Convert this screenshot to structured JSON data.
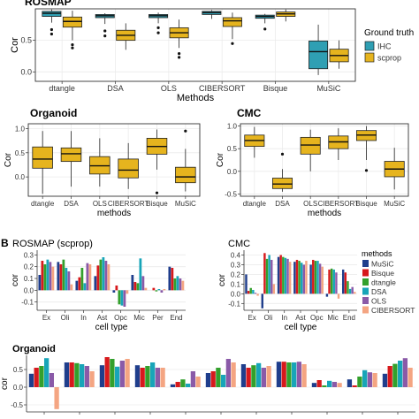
{
  "panel_b_label": "B",
  "colors": {
    "ihc": "#2f9fb3",
    "scprop": "#e6b41e",
    "MuSiC": "#1f3e8c",
    "Bisque": "#d7191c",
    "dtangle": "#33a02c",
    "DSA": "#18a5b8",
    "OLS": "#8a5aa8",
    "CIBERSORT": "#f4a582",
    "grid": "#ebebeb",
    "panel_border": "#333333"
  },
  "chart_data": [
    {
      "type": "box",
      "title": "ROSMAP",
      "xlabel": "Methods",
      "ylabel": "Cor",
      "categories": [
        "dtangle",
        "DSA",
        "OLS",
        "CIBERSORT",
        "Bisque",
        "MuSiC"
      ],
      "ylim": [
        -0.15,
        1.0
      ],
      "yticks": [
        0.0,
        0.5
      ],
      "legend": {
        "title": "Ground truth",
        "position": "right",
        "items": [
          "IHC",
          "scprop"
        ]
      },
      "series": [
        {
          "name": "IHC",
          "boxes": [
            {
              "min": 0.78,
              "q1": 0.88,
              "median": 0.93,
              "q3": 0.96,
              "max": 0.99,
              "outliers": [
                0.6,
                0.67
              ]
            },
            {
              "min": 0.76,
              "q1": 0.86,
              "median": 0.89,
              "q3": 0.91,
              "max": 0.93,
              "outliers": [
                0.57,
                0.65
              ]
            },
            {
              "min": 0.77,
              "q1": 0.86,
              "median": 0.89,
              "q3": 0.91,
              "max": 0.94,
              "outliers": [
                0.62,
                0.7
              ]
            },
            {
              "min": 0.84,
              "q1": 0.91,
              "median": 0.94,
              "q3": 0.96,
              "max": 0.98,
              "outliers": []
            },
            {
              "min": 0.77,
              "q1": 0.85,
              "median": 0.88,
              "q3": 0.9,
              "max": 0.92,
              "outliers": [
                0.68
              ]
            },
            {
              "min": -0.05,
              "q1": 0.05,
              "median": 0.32,
              "q3": 0.49,
              "max": 0.75,
              "outliers": []
            }
          ]
        },
        {
          "name": "scprop",
          "boxes": [
            {
              "min": 0.5,
              "q1": 0.71,
              "median": 0.8,
              "q3": 0.87,
              "max": 0.97,
              "outliers": [
                0.38,
                0.43
              ]
            },
            {
              "min": 0.35,
              "q1": 0.5,
              "median": 0.58,
              "q3": 0.66,
              "max": 0.77,
              "outliers": []
            },
            {
              "min": 0.38,
              "q1": 0.54,
              "median": 0.62,
              "q3": 0.7,
              "max": 0.83,
              "outliers": [
                0.23,
                0.29
              ]
            },
            {
              "min": 0.52,
              "q1": 0.72,
              "median": 0.81,
              "q3": 0.86,
              "max": 0.94,
              "outliers": [
                0.45
              ]
            },
            {
              "min": 0.8,
              "q1": 0.88,
              "median": 0.92,
              "q3": 0.95,
              "max": 0.99,
              "outliers": []
            },
            {
              "min": 0.05,
              "q1": 0.16,
              "median": 0.26,
              "q3": 0.36,
              "max": 0.5,
              "outliers": []
            }
          ]
        }
      ]
    },
    {
      "type": "box",
      "title": "Organoid",
      "xlabel": "methods",
      "ylabel": "Cor",
      "categories": [
        "dtangle",
        "DSA",
        "OLS",
        "CIBERSORT",
        "Bisque",
        "MuSiC"
      ],
      "ylim": [
        -0.4,
        1.1
      ],
      "yticks": [
        0.0,
        0.5,
        1.0
      ],
      "series": [
        {
          "name": "scprop",
          "boxes": [
            {
              "min": -0.35,
              "q1": 0.18,
              "median": 0.37,
              "q3": 0.62,
              "max": 0.95,
              "outliers": []
            },
            {
              "min": -0.2,
              "q1": 0.32,
              "median": 0.48,
              "q3": 0.6,
              "max": 0.95,
              "outliers": []
            },
            {
              "min": -0.2,
              "q1": 0.06,
              "median": 0.23,
              "q3": 0.42,
              "max": 0.8,
              "outliers": []
            },
            {
              "min": -0.25,
              "q1": -0.02,
              "median": 0.14,
              "q3": 0.37,
              "max": 0.7,
              "outliers": []
            },
            {
              "min": 0.15,
              "q1": 0.47,
              "median": 0.63,
              "q3": 0.8,
              "max": 0.98,
              "outliers": [
                -0.33
              ]
            },
            {
              "min": -0.3,
              "q1": -0.12,
              "median": 0.0,
              "q3": 0.2,
              "max": 0.58,
              "outliers": [
                0.95
              ]
            }
          ]
        }
      ]
    },
    {
      "type": "box",
      "title": "CMC",
      "xlabel": "methods",
      "ylabel": "Cor",
      "categories": [
        "dtangle",
        "DSA",
        "OLS",
        "CIBERSORT",
        "Bisque",
        "MuSiC"
      ],
      "ylim": [
        -0.55,
        1.05
      ],
      "yticks": [
        -0.5,
        0.0,
        0.5,
        1.0
      ],
      "series": [
        {
          "name": "scprop",
          "boxes": [
            {
              "min": 0.3,
              "q1": 0.55,
              "median": 0.68,
              "q3": 0.8,
              "max": 0.98,
              "outliers": []
            },
            {
              "min": -0.45,
              "q1": -0.38,
              "median": -0.28,
              "q3": -0.15,
              "max": 0.05,
              "outliers": [
                0.38
              ]
            },
            {
              "min": 0.0,
              "q1": 0.38,
              "median": 0.58,
              "q3": 0.75,
              "max": 0.92,
              "outliers": []
            },
            {
              "min": 0.25,
              "q1": 0.5,
              "median": 0.65,
              "q3": 0.78,
              "max": 0.95,
              "outliers": []
            },
            {
              "min": 0.25,
              "q1": 0.68,
              "median": 0.8,
              "q3": 0.9,
              "max": 1.0,
              "outliers": [
                0.02
              ]
            },
            {
              "min": -0.4,
              "q1": -0.12,
              "median": 0.05,
              "q3": 0.22,
              "max": 0.52,
              "outliers": []
            }
          ]
        }
      ]
    },
    {
      "type": "bar",
      "title": "ROSMAP (scprop)",
      "xlabel": "cell type",
      "ylabel": "cor",
      "categories": [
        "Ex",
        "Oli",
        "In",
        "Ast",
        "Opc",
        "Mic",
        "Per",
        "End"
      ],
      "ylim": [
        -0.17,
        0.34
      ],
      "yticks": [
        -0.1,
        0.0,
        0.1,
        0.2,
        0.3
      ],
      "series": [
        {
          "name": "MuSiC",
          "values": [
            0.13,
            0.24,
            0.08,
            0.12,
            -0.02,
            0.13,
            0.0,
            0.2
          ]
        },
        {
          "name": "Bisque",
          "values": [
            0.25,
            0.22,
            0.11,
            0.21,
            0.04,
            0.07,
            0.02,
            0.19
          ]
        },
        {
          "name": "dtangle",
          "values": [
            0.22,
            0.26,
            0.19,
            0.26,
            -0.12,
            0.06,
            -0.01,
            0.1
          ]
        },
        {
          "name": "DSA",
          "values": [
            0.26,
            0.19,
            0.06,
            0.28,
            -0.13,
            0.27,
            0.01,
            0.12
          ]
        },
        {
          "name": "OLS",
          "values": [
            0.24,
            0.16,
            0.23,
            0.25,
            -0.14,
            0.12,
            -0.02,
            0.1
          ]
        },
        {
          "name": "CIBERSORT",
          "values": [
            0.2,
            0.05,
            0.22,
            0.22,
            -0.03,
            0.02,
            0.01,
            0.08
          ]
        }
      ]
    },
    {
      "type": "bar",
      "title": "CMC",
      "xlabel": "cell type",
      "ylabel": "cor",
      "categories": [
        "Ex",
        "Oli",
        "In",
        "Ast",
        "Opc",
        "Mic",
        "End"
      ],
      "ylim": [
        -0.17,
        0.45
      ],
      "yticks": [
        -0.1,
        0.0,
        0.1,
        0.2,
        0.3,
        0.4
      ],
      "legend": {
        "title": "methods",
        "position": "right",
        "items": [
          "MuSiC",
          "Bisque",
          "dtangle",
          "DSA",
          "OLS",
          "CIBERSORT"
        ]
      },
      "series": [
        {
          "name": "MuSiC",
          "values": [
            0.2,
            -0.15,
            0.38,
            0.33,
            0.3,
            -0.03,
            0.25
          ]
        },
        {
          "name": "Bisque",
          "values": [
            0.03,
            0.42,
            0.4,
            0.35,
            0.35,
            0.25,
            0.22
          ]
        },
        {
          "name": "dtangle",
          "values": [
            0.06,
            0.36,
            0.38,
            0.34,
            0.34,
            0.26,
            0.13
          ]
        },
        {
          "name": "DSA",
          "values": [
            0.04,
            0.4,
            0.37,
            0.32,
            0.34,
            0.25,
            0.05
          ]
        },
        {
          "name": "OLS",
          "values": [
            0.01,
            0.35,
            0.36,
            0.3,
            0.31,
            0.22,
            0.07
          ]
        },
        {
          "name": "CIBERSORT",
          "values": [
            -0.02,
            0.1,
            0.33,
            0.34,
            0.28,
            -0.05,
            0.02
          ]
        }
      ]
    },
    {
      "type": "bar",
      "title": "Organoid",
      "xlabel": "",
      "ylabel": "cor",
      "categories": [
        "",
        "",
        "",
        "",
        "",
        "",
        "",
        "",
        "",
        "",
        ""
      ],
      "ylim": [
        -0.7,
        0.9
      ],
      "yticks": [
        -0.5,
        0.0,
        0.5
      ],
      "series": [
        {
          "name": "MuSiC",
          "values": [
            0.38,
            0.7,
            0.62,
            0.62,
            0.08,
            0.4,
            0.65,
            0.72,
            0.12,
            0.22,
            0.38
          ]
        },
        {
          "name": "Bisque",
          "values": [
            0.55,
            0.7,
            0.85,
            0.55,
            0.15,
            0.45,
            0.55,
            0.72,
            0.2,
            0.05,
            0.6
          ]
        },
        {
          "name": "dtangle",
          "values": [
            0.6,
            0.68,
            0.8,
            0.6,
            0.22,
            0.55,
            0.62,
            0.7,
            0.05,
            0.3,
            0.66
          ]
        },
        {
          "name": "DSA",
          "values": [
            0.82,
            0.65,
            0.58,
            0.7,
            0.1,
            0.35,
            0.68,
            0.7,
            0.18,
            0.48,
            0.75
          ]
        },
        {
          "name": "OLS",
          "values": [
            0.4,
            0.6,
            0.75,
            0.55,
            0.45,
            0.8,
            0.55,
            0.72,
            0.15,
            0.42,
            0.82
          ]
        },
        {
          "name": "CIBERSORT",
          "values": [
            -0.62,
            0.45,
            0.8,
            0.55,
            0.3,
            0.7,
            0.6,
            0.65,
            0.12,
            0.4,
            0.55
          ]
        }
      ]
    }
  ]
}
